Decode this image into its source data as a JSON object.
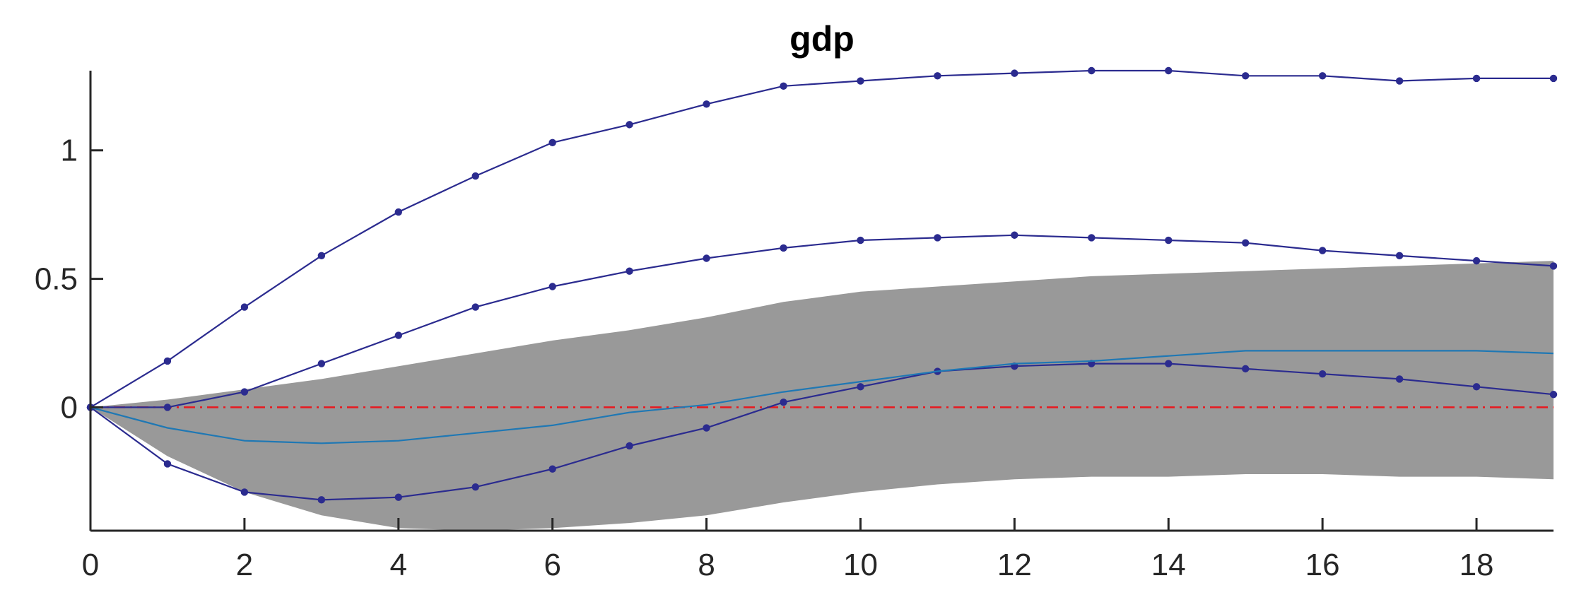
{
  "chart_data": {
    "type": "line",
    "title": "gdp",
    "xlabel": "",
    "ylabel": "",
    "xlim": [
      0,
      19
    ],
    "ylim": [
      -0.48,
      1.31
    ],
    "x_ticks": [
      0,
      2,
      4,
      6,
      8,
      10,
      12,
      14,
      16,
      18
    ],
    "y_ticks": [
      0,
      0.5,
      1
    ],
    "grid": false,
    "legend": "none",
    "x": [
      0,
      1,
      2,
      3,
      4,
      5,
      6,
      7,
      8,
      9,
      10,
      11,
      12,
      13,
      14,
      15,
      16,
      17,
      18,
      19
    ],
    "band": {
      "lower": [
        0,
        -0.19,
        -0.33,
        -0.42,
        -0.47,
        -0.48,
        -0.47,
        -0.45,
        -0.42,
        -0.37,
        -0.33,
        -0.3,
        -0.28,
        -0.27,
        -0.27,
        -0.26,
        -0.26,
        -0.27,
        -0.27,
        -0.28
      ],
      "upper": [
        0,
        0.03,
        0.07,
        0.11,
        0.16,
        0.21,
        0.26,
        0.3,
        0.35,
        0.41,
        0.45,
        0.47,
        0.49,
        0.51,
        0.52,
        0.53,
        0.54,
        0.55,
        0.56,
        0.57
      ],
      "color": "#999999"
    },
    "series": [
      {
        "values": [
          0,
          0.18,
          0.39,
          0.59,
          0.76,
          0.9,
          1.03,
          1.1,
          1.18,
          1.25,
          1.27,
          1.29,
          1.3,
          1.31,
          1.31,
          1.29,
          1.29,
          1.27,
          1.28,
          1.28
        ],
        "color": "#2b2b8f",
        "markers": true
      },
      {
        "values": [
          0,
          0.0,
          0.06,
          0.17,
          0.28,
          0.39,
          0.47,
          0.53,
          0.58,
          0.62,
          0.65,
          0.66,
          0.67,
          0.66,
          0.65,
          0.64,
          0.61,
          0.59,
          0.57,
          0.55
        ],
        "color": "#2b2b8f",
        "markers": true
      },
      {
        "values": [
          0,
          -0.22,
          -0.33,
          -0.36,
          -0.35,
          -0.31,
          -0.24,
          -0.15,
          -0.08,
          0.02,
          0.08,
          0.14,
          0.16,
          0.17,
          0.17,
          0.15,
          0.13,
          0.11,
          0.08,
          0.05
        ],
        "color": "#2b2b8f",
        "markers": true
      },
      {
        "values": [
          0,
          -0.08,
          -0.13,
          -0.14,
          -0.13,
          -0.1,
          -0.07,
          -0.02,
          0.01,
          0.06,
          0.1,
          0.14,
          0.17,
          0.18,
          0.2,
          0.22,
          0.22,
          0.22,
          0.22,
          0.21
        ],
        "color": "#1f78b4",
        "markers": false
      }
    ],
    "zero_line": {
      "y": 0,
      "color": "#e8191f",
      "style": "dash-dot"
    }
  }
}
